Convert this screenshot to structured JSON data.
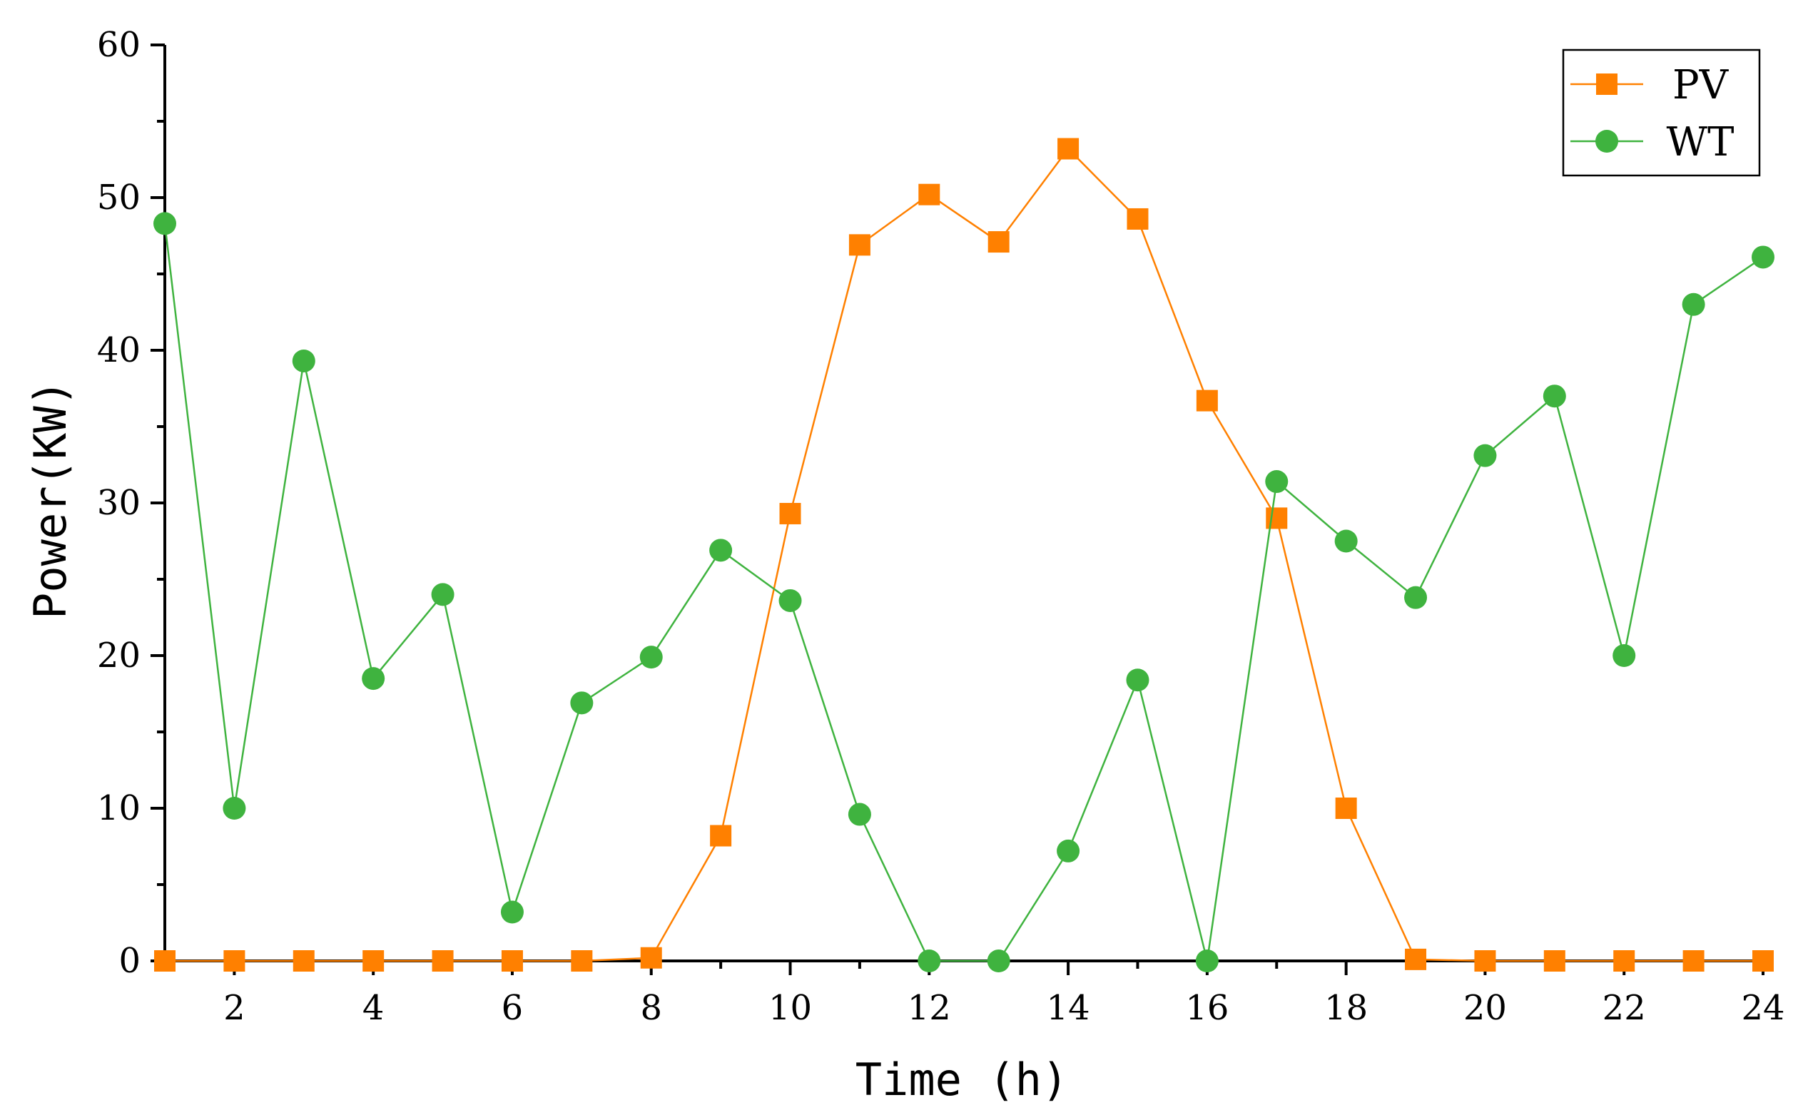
{
  "chart_data": {
    "type": "line",
    "title": "",
    "xlabel": "Time (h)",
    "ylabel": "Power(KW)",
    "xlim": [
      1,
      24
    ],
    "ylim": [
      0,
      60
    ],
    "xticks": [
      2,
      4,
      6,
      8,
      10,
      12,
      14,
      16,
      18,
      20,
      22,
      24
    ],
    "yticks": [
      0,
      10,
      20,
      30,
      40,
      50,
      60
    ],
    "grid": false,
    "legend_position": "top-right",
    "x": [
      1,
      2,
      3,
      4,
      5,
      6,
      7,
      8,
      9,
      10,
      11,
      12,
      13,
      14,
      15,
      16,
      17,
      18,
      19,
      20,
      21,
      22,
      23,
      24
    ],
    "series": [
      {
        "name": "PV",
        "marker": "square",
        "color": "#FF8000",
        "values": [
          0,
          0,
          0,
          0,
          0,
          0,
          0,
          0.2,
          8.2,
          29.3,
          46.9,
          50.2,
          47.1,
          53.2,
          48.6,
          36.7,
          29.0,
          10.0,
          0.1,
          0,
          0,
          0,
          0,
          0
        ]
      },
      {
        "name": "WT",
        "marker": "circle",
        "color": "#3FB33F",
        "values": [
          48.3,
          10.0,
          39.3,
          18.5,
          24.0,
          3.2,
          16.9,
          19.9,
          26.9,
          23.6,
          9.6,
          0,
          0,
          7.2,
          18.4,
          0,
          31.4,
          27.5,
          23.8,
          33.1,
          37.0,
          20.0,
          43.0,
          46.1
        ]
      }
    ]
  }
}
